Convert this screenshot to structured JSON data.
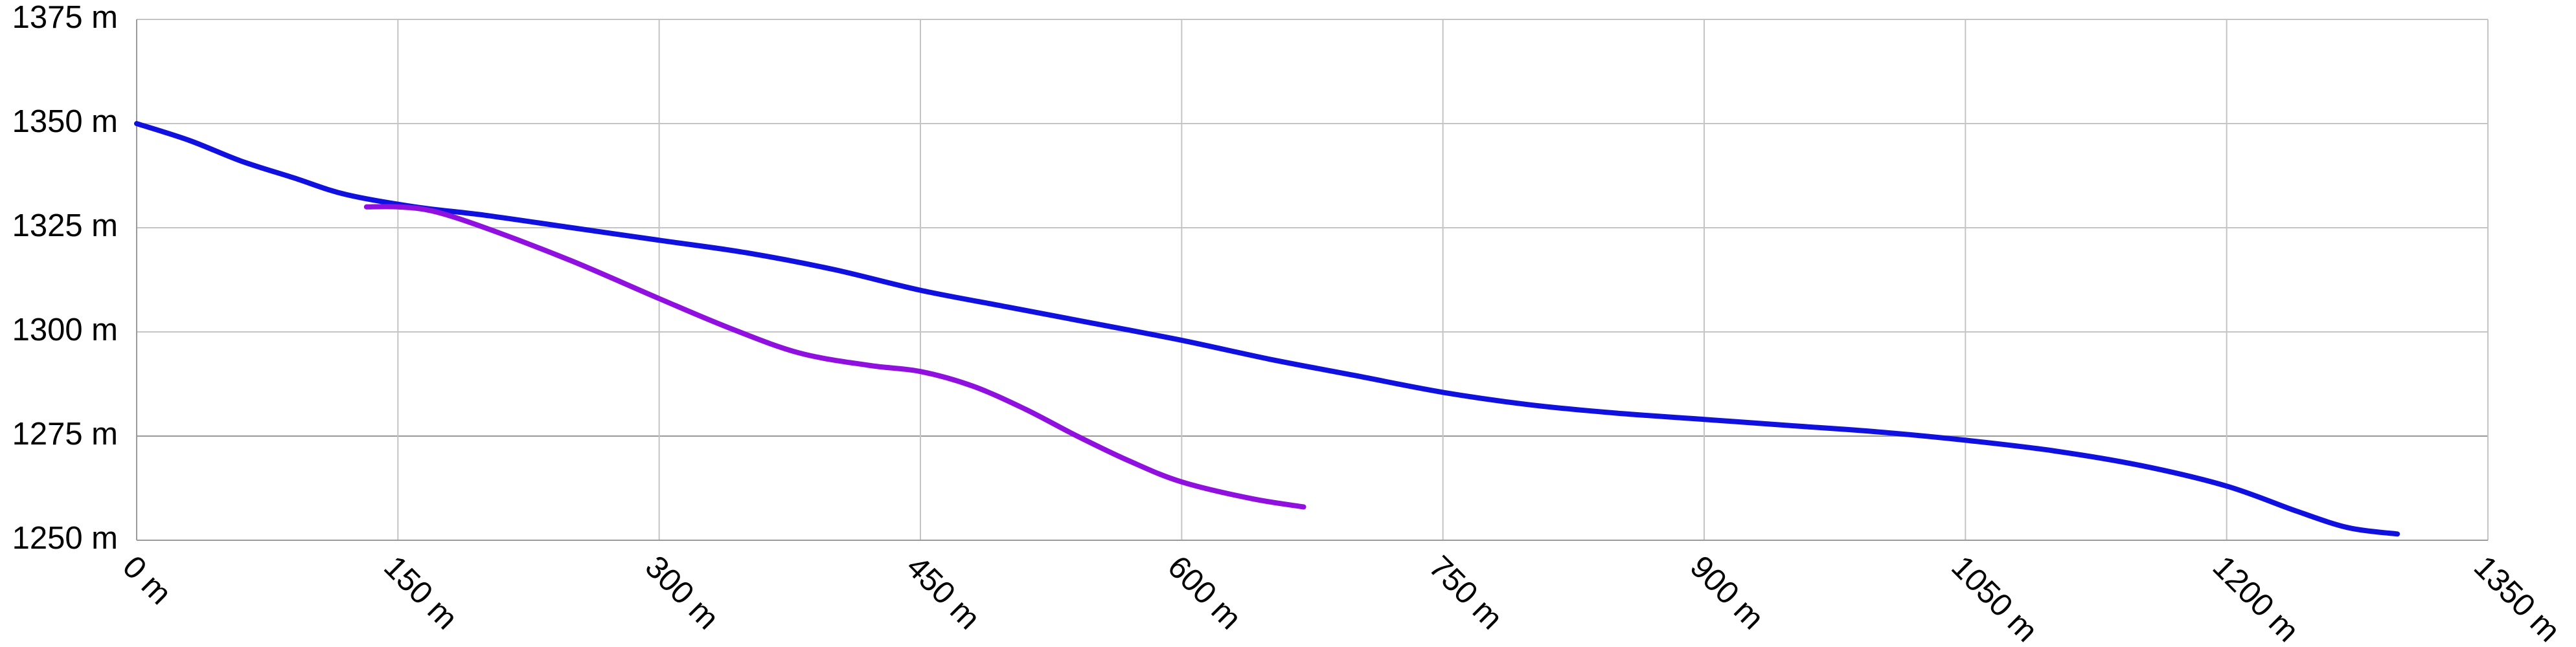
{
  "chart_data": {
    "type": "line",
    "x_unit": "m",
    "y_unit": "m",
    "xlim": [
      0,
      1350
    ],
    "ylim": [
      1250,
      1375
    ],
    "x_ticks": [
      0,
      150,
      300,
      450,
      600,
      750,
      900,
      1050,
      1200,
      1350
    ],
    "y_ticks": [
      1250,
      1275,
      1300,
      1325,
      1350,
      1375
    ],
    "x_tick_labels": [
      "0 m",
      "150 m",
      "300 m",
      "450 m",
      "600 m",
      "750 m",
      "900 m",
      "1050 m",
      "1200 m",
      "1350 m"
    ],
    "y_tick_labels": [
      "1250 m",
      "1275 m",
      "1300 m",
      "1325 m",
      "1350 m",
      "1375 m"
    ],
    "grid": true,
    "series": [
      {
        "color": "#1010e0",
        "points": [
          [
            0,
            1350
          ],
          [
            30,
            1346
          ],
          [
            60,
            1341
          ],
          [
            90,
            1337
          ],
          [
            120,
            1333
          ],
          [
            160,
            1330
          ],
          [
            200,
            1328
          ],
          [
            250,
            1325
          ],
          [
            300,
            1322
          ],
          [
            350,
            1319
          ],
          [
            400,
            1315
          ],
          [
            450,
            1310
          ],
          [
            500,
            1306
          ],
          [
            550,
            1302
          ],
          [
            600,
            1298
          ],
          [
            650,
            1293.5
          ],
          [
            700,
            1289.5
          ],
          [
            750,
            1285.5
          ],
          [
            800,
            1282.5
          ],
          [
            850,
            1280.5
          ],
          [
            900,
            1279
          ],
          [
            950,
            1277.5
          ],
          [
            1000,
            1276
          ],
          [
            1050,
            1274
          ],
          [
            1100,
            1271.5
          ],
          [
            1150,
            1268
          ],
          [
            1200,
            1263
          ],
          [
            1240,
            1257
          ],
          [
            1270,
            1253
          ],
          [
            1298,
            1251.5
          ]
        ]
      },
      {
        "color": "#9010e0",
        "points": [
          [
            132,
            1330
          ],
          [
            150,
            1330
          ],
          [
            170,
            1329
          ],
          [
            200,
            1325
          ],
          [
            250,
            1317
          ],
          [
            300,
            1308
          ],
          [
            340,
            1301
          ],
          [
            380,
            1295
          ],
          [
            420,
            1292
          ],
          [
            450,
            1290.5
          ],
          [
            480,
            1287
          ],
          [
            510,
            1281.5
          ],
          [
            540,
            1275
          ],
          [
            570,
            1269
          ],
          [
            600,
            1264
          ],
          [
            640,
            1260
          ],
          [
            670,
            1258
          ]
        ]
      }
    ]
  }
}
